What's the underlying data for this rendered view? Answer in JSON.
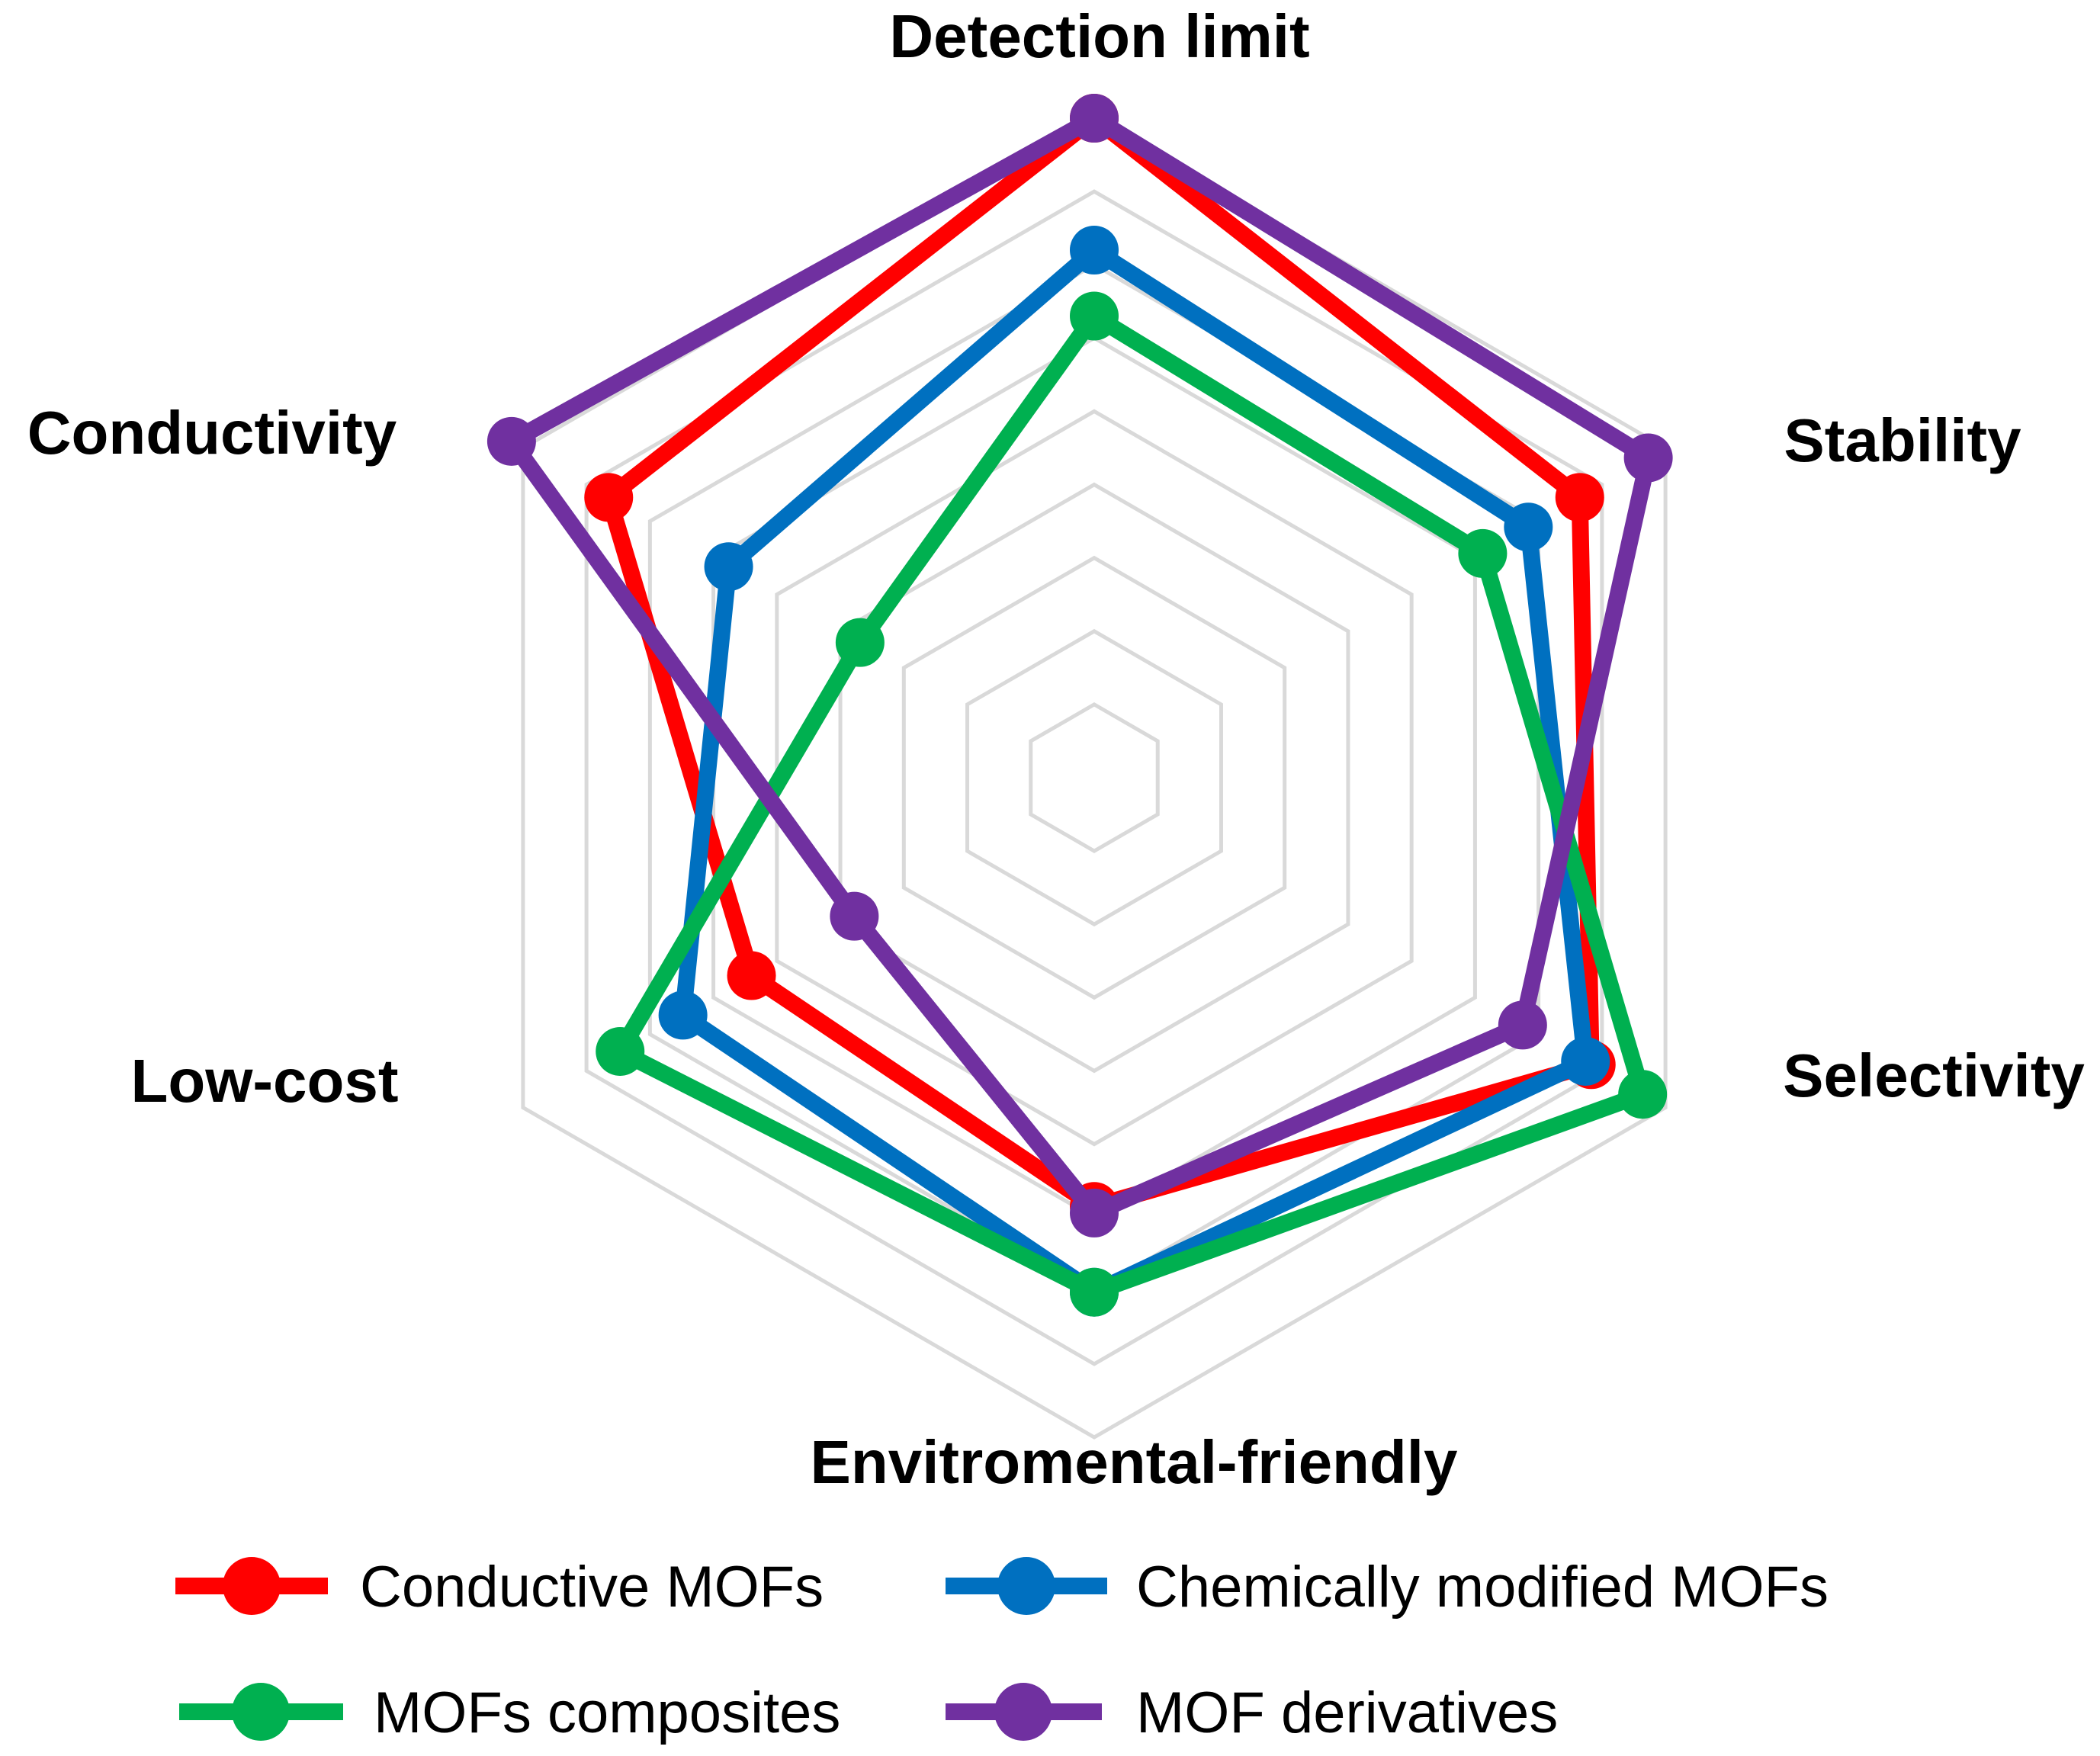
{
  "chart_data": {
    "type": "radar",
    "title": "",
    "axes": [
      "Detection limit",
      "Stability",
      "Selectivity",
      "Envitromental-friendly",
      "Low-cost",
      "Conductivity"
    ],
    "range": [
      0,
      10
    ],
    "gridlines": 9,
    "grid": true,
    "legend_position": "bottom",
    "series": [
      {
        "name": "Conductive MOFs",
        "color": "#FF0000",
        "values": [
          10,
          8.5,
          8.7,
          6.5,
          6.0,
          8.5
        ]
      },
      {
        "name": "Chemically modified MOFs",
        "color": "#0070C0",
        "values": [
          8.0,
          7.6,
          8.6,
          7.8,
          7.2,
          6.4
        ]
      },
      {
        "name": "MOFs composites",
        "color": "#00B050",
        "values": [
          7.0,
          6.8,
          9.6,
          7.8,
          8.3,
          4.1
        ]
      },
      {
        "name": "MOF derivatives",
        "color": "#7030A0",
        "values": [
          10,
          9.7,
          7.5,
          6.6,
          4.2,
          10.2
        ]
      }
    ]
  }
}
